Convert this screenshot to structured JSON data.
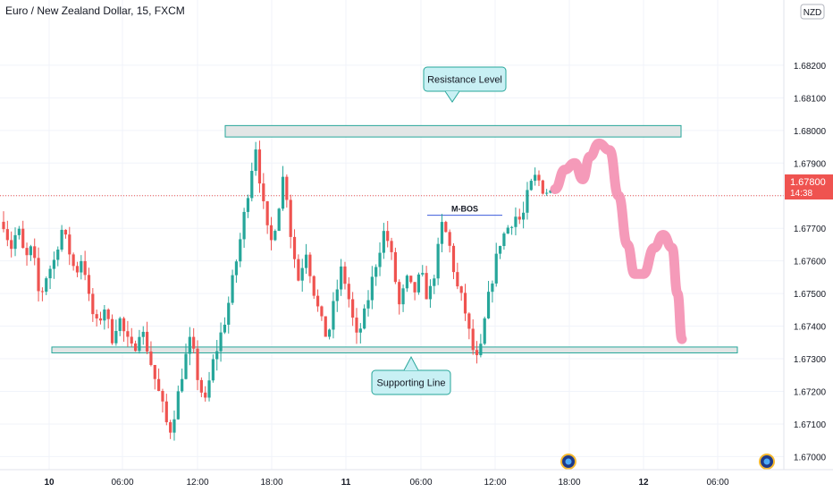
{
  "header": {
    "title": "Euro / New Zealand Dollar, 15, FXCM"
  },
  "price_axis": {
    "currency": "NZD",
    "current_price": "1.67800",
    "countdown": "14:38"
  },
  "annotations": {
    "resistance": "Resistance Level",
    "support": "Supporting Line",
    "mbos": "M-BOS"
  },
  "colors": {
    "up": "#26a69a",
    "down": "#ef5350",
    "zone_fill": "#e3e6e6",
    "zone_border": "#26a69a",
    "callout_fill": "#c8f0f4",
    "projection": "#f48fb1",
    "price_tag": "#ef5350"
  },
  "chart_data": {
    "type": "candlestick",
    "title": "Euro / New Zealand Dollar, 15, FXCM",
    "ylim": [
      1.6696,
      1.684
    ],
    "y_ticks": [
      "1.67000",
      "1.67100",
      "1.67200",
      "1.67300",
      "1.67400",
      "1.67500",
      "1.67600",
      "1.67700",
      "1.67800",
      "1.67900",
      "1.68000",
      "1.68100",
      "1.68200"
    ],
    "x_ticks": [
      "10",
      "06:00",
      "12:00",
      "18:00",
      "11",
      "06:00",
      "12:00",
      "18:00",
      "12",
      "06:00"
    ],
    "grid": true,
    "resistance_zone": [
      1.6798,
      1.68015
    ],
    "support_zone": [
      1.67318,
      1.67336
    ],
    "mbos_level": 1.6774,
    "current_price": 1.678,
    "path_points": [
      1.6772,
      1.6764,
      1.677,
      1.676,
      1.6764,
      1.6748,
      1.6756,
      1.676,
      1.677,
      1.6764,
      1.6756,
      1.6762,
      1.6746,
      1.674,
      1.6746,
      1.6736,
      1.6743,
      1.6736,
      1.6732,
      1.674,
      1.6733,
      1.6724,
      1.6716,
      1.6707,
      1.6716,
      1.6728,
      1.6736,
      1.6724,
      1.6716,
      1.6728,
      1.6736,
      1.6744,
      1.6756,
      1.6768,
      1.6782,
      1.6796,
      1.6778,
      1.6764,
      1.6774,
      1.6788,
      1.6766,
      1.6754,
      1.6764,
      1.6752,
      1.6742,
      1.6736,
      1.6748,
      1.6758,
      1.6748,
      1.6736,
      1.6742,
      1.6752,
      1.6762,
      1.677,
      1.676,
      1.6746,
      1.6754,
      1.675,
      1.6756,
      1.6748,
      1.6758,
      1.6772,
      1.6764,
      1.6752,
      1.6746,
      1.6734,
      1.6728,
      1.6744,
      1.6756,
      1.6766,
      1.677,
      1.6774,
      1.6772,
      1.6782,
      1.6786,
      1.6782,
      1.6781
    ],
    "projection_points": [
      1.6782,
      1.6788,
      1.679,
      1.6785,
      1.6792,
      1.6796,
      1.6794,
      1.678,
      1.6765,
      1.6756,
      1.6756,
      1.6764,
      1.6768,
      1.6764,
      1.675,
      1.6736
    ],
    "events": 2
  }
}
